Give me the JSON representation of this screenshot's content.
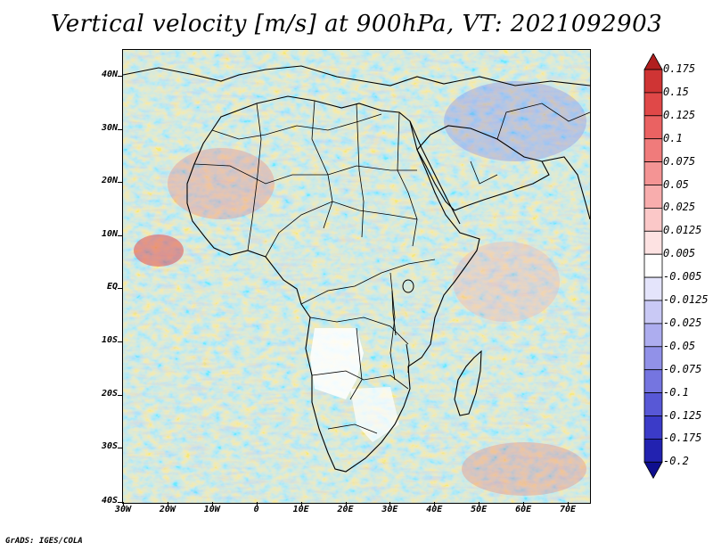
{
  "title": "Vertical velocity [m/s] at 900hPa, VT: 2021092903",
  "footer": "GrADS: IGES/COLA",
  "map": {
    "variable": "Vertical velocity",
    "units": "m/s",
    "level": "900hPa",
    "valid_time": "2021092903",
    "lat_labels": [
      "40N",
      "30N",
      "20N",
      "10N",
      "EQ",
      "10S",
      "20S",
      "30S",
      "40S"
    ],
    "lon_labels": [
      "30W",
      "20W",
      "10W",
      "0",
      "10E",
      "20E",
      "30E",
      "40E",
      "50E",
      "60E",
      "70E"
    ]
  },
  "colorbar": {
    "levels": [
      "0.175",
      "0.15",
      "0.125",
      "0.1",
      "0.075",
      "0.05",
      "0.025",
      "0.0125",
      "0.005",
      "-0.005",
      "-0.0125",
      "-0.025",
      "-0.05",
      "-0.075",
      "-0.1",
      "-0.125",
      "-0.175",
      "-0.2"
    ],
    "colors": [
      "#b11f1f",
      "#cf3434",
      "#e04848",
      "#ea6262",
      "#f07b7b",
      "#f49494",
      "#f8adad",
      "#fbc8c8",
      "#fde2e2",
      "#ffffff",
      "#e4e4fb",
      "#c9c9f5",
      "#adadef",
      "#9191e8",
      "#7575e0",
      "#5858d6",
      "#3b3bc8",
      "#2222b0",
      "#0f0f8f"
    ]
  }
}
